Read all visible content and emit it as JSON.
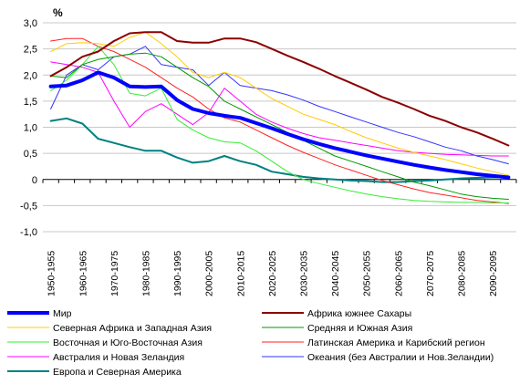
{
  "chart_data": {
    "type": "line",
    "unit_label": "%",
    "ylim": [
      -1.0,
      3.0
    ],
    "ytick_labels": [
      "3,0",
      "2,5",
      "2,0",
      "1,5",
      "1,0",
      "0,5",
      "0",
      "-0,5",
      "-1,0"
    ],
    "ytick_values": [
      3.0,
      2.5,
      2.0,
      1.5,
      1.0,
      0.5,
      0,
      -0.5,
      -1.0
    ],
    "x": [
      "1950-1955",
      "1955-1960",
      "1960-1965",
      "1965-1970",
      "1970-1975",
      "1975-1980",
      "1980-1985",
      "1985-1990",
      "1990-1995",
      "1995-2000",
      "2000-2005",
      "2005-2010",
      "2010-2015",
      "2015-2020",
      "2020-2025",
      "2025-2030",
      "2030-2035",
      "2035-2040",
      "2040-2045",
      "2045-2050",
      "2050-2055",
      "2055-2060",
      "2060-2065",
      "2065-2070",
      "2070-2075",
      "2075-2080",
      "2080-2085",
      "2085-2090",
      "2090-2095",
      "2095-2100"
    ],
    "xtick_labels": [
      "1950-1955",
      "1960-1965",
      "1970-1975",
      "1980-1985",
      "1990-1995",
      "2000-2005",
      "2010-2015",
      "2020-2025",
      "2030-2035",
      "2040-2045",
      "2050-2055",
      "2060-2065",
      "2070-2075",
      "2080-2085",
      "2090-2095"
    ],
    "grid": true,
    "legend_position": "bottom",
    "series": [
      {
        "name": "Мир",
        "color": "#0000ff",
        "width": 4,
        "values": [
          1.78,
          1.8,
          1.9,
          2.05,
          1.95,
          1.78,
          1.77,
          1.78,
          1.52,
          1.35,
          1.27,
          1.22,
          1.18,
          1.08,
          0.98,
          0.87,
          0.77,
          0.68,
          0.6,
          0.53,
          0.46,
          0.4,
          0.34,
          0.28,
          0.23,
          0.18,
          0.14,
          0.1,
          0.07,
          0.04
        ]
      },
      {
        "name": "Африка южнее Сахары",
        "color": "#8b0000",
        "width": 2,
        "values": [
          1.98,
          2.15,
          2.35,
          2.45,
          2.65,
          2.8,
          2.82,
          2.82,
          2.65,
          2.62,
          2.62,
          2.7,
          2.7,
          2.63,
          2.5,
          2.37,
          2.25,
          2.12,
          1.98,
          1.85,
          1.72,
          1.58,
          1.47,
          1.35,
          1.22,
          1.12,
          1.0,
          0.9,
          0.78,
          0.65
        ]
      },
      {
        "name": "Северная Африка и Западная Азия",
        "color": "#ffcc00",
        "width": 1,
        "values": [
          2.45,
          2.6,
          2.62,
          2.6,
          2.55,
          2.72,
          2.82,
          2.6,
          2.35,
          2.05,
          1.95,
          2.05,
          1.95,
          1.75,
          1.55,
          1.4,
          1.25,
          1.15,
          1.05,
          0.92,
          0.8,
          0.7,
          0.6,
          0.52,
          0.45,
          0.38,
          0.3,
          0.22,
          0.15,
          0.08
        ]
      },
      {
        "name": "Средняя  и Южная Азия",
        "color": "#009900",
        "width": 1,
        "values": [
          1.98,
          1.95,
          2.2,
          2.3,
          2.35,
          2.4,
          2.42,
          2.35,
          2.15,
          1.95,
          1.78,
          1.5,
          1.35,
          1.2,
          1.05,
          0.9,
          0.75,
          0.6,
          0.45,
          0.35,
          0.25,
          0.15,
          0.05,
          -0.05,
          -0.12,
          -0.2,
          -0.28,
          -0.33,
          -0.36,
          -0.38
        ]
      },
      {
        "name": "Восточная и Юго-Восточная Азия",
        "color": "#33ee33",
        "width": 1,
        "values": [
          1.7,
          1.9,
          2.2,
          2.55,
          2.2,
          1.65,
          1.6,
          1.75,
          1.15,
          0.95,
          0.8,
          0.72,
          0.7,
          0.55,
          0.35,
          0.15,
          0.0,
          -0.08,
          -0.15,
          -0.22,
          -0.28,
          -0.33,
          -0.37,
          -0.4,
          -0.42,
          -0.43,
          -0.44,
          -0.44,
          -0.45,
          -0.45
        ]
      },
      {
        "name": "Латинская Америка и Карибский регион",
        "color": "#ff2222",
        "width": 1,
        "values": [
          2.65,
          2.7,
          2.7,
          2.55,
          2.45,
          2.3,
          2.15,
          1.95,
          1.75,
          1.58,
          1.35,
          1.18,
          1.1,
          0.95,
          0.8,
          0.65,
          0.52,
          0.4,
          0.28,
          0.18,
          0.08,
          -0.02,
          -0.1,
          -0.18,
          -0.25,
          -0.3,
          -0.35,
          -0.4,
          -0.43,
          -0.46
        ]
      },
      {
        "name": "Австралия и Новая Зеландия",
        "color": "#ff00ff",
        "width": 1,
        "values": [
          2.25,
          2.2,
          2.15,
          2.05,
          1.5,
          1.0,
          1.3,
          1.45,
          1.25,
          1.05,
          1.28,
          1.75,
          1.5,
          1.25,
          1.1,
          0.98,
          0.88,
          0.8,
          0.75,
          0.7,
          0.65,
          0.6,
          0.55,
          0.52,
          0.5,
          0.48,
          0.47,
          0.46,
          0.45,
          0.45
        ]
      },
      {
        "name": "Океания (без Австралии и Нов.Зеландии)",
        "color": "#3333ff",
        "width": 1,
        "values": [
          1.35,
          2.0,
          2.2,
          2.1,
          2.35,
          2.4,
          2.55,
          2.2,
          2.15,
          2.1,
          1.8,
          2.05,
          1.8,
          1.75,
          1.7,
          1.62,
          1.52,
          1.4,
          1.3,
          1.2,
          1.1,
          1.0,
          0.9,
          0.82,
          0.72,
          0.62,
          0.55,
          0.45,
          0.38,
          0.3
        ]
      },
      {
        "name": "Европа и Северная Америка",
        "color": "#008080",
        "width": 2,
        "values": [
          1.12,
          1.17,
          1.07,
          0.78,
          0.7,
          0.62,
          0.55,
          0.55,
          0.42,
          0.32,
          0.35,
          0.45,
          0.35,
          0.28,
          0.15,
          0.1,
          0.05,
          0.02,
          0.0,
          -0.02,
          -0.03,
          -0.05,
          -0.05,
          -0.03,
          -0.02,
          0.0,
          0.02,
          0.03,
          0.04,
          0.04
        ]
      }
    ]
  }
}
